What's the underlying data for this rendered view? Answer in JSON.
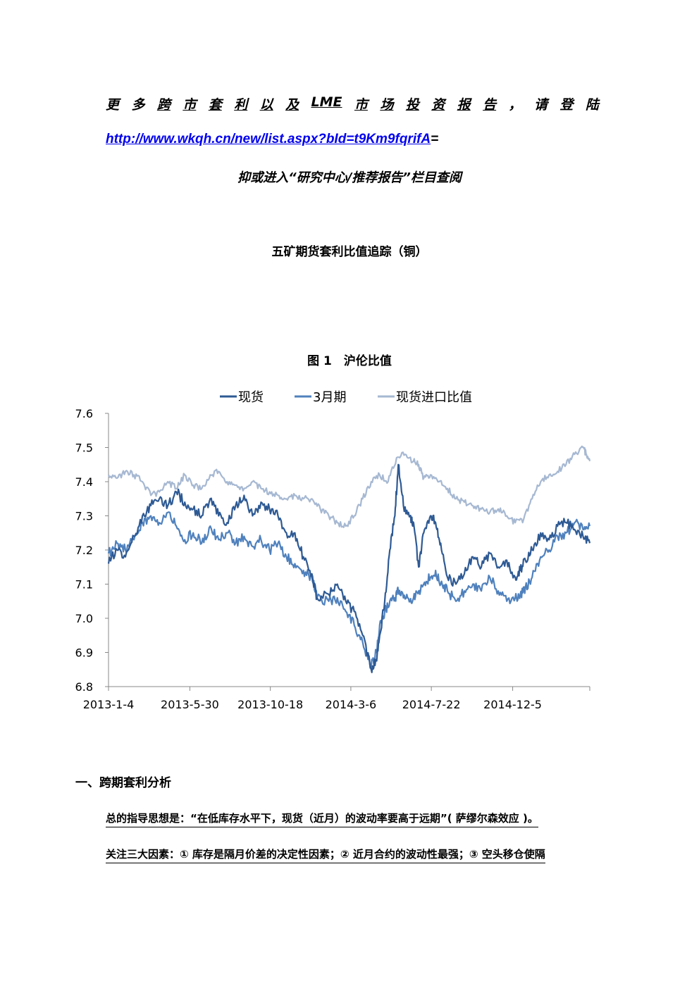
{
  "header": {
    "promo_chars": [
      "更",
      "多",
      "跨",
      "市",
      "套",
      "利",
      "以",
      "及",
      "LME",
      "市",
      "场",
      "投",
      "资",
      "报",
      "告",
      "，",
      "请",
      "登",
      "陆"
    ],
    "url_text": "http://www.wkqh.cn/new/list.aspx?bId=t9Km9fqrifA",
    "url_suffix": "=",
    "hint": "抑或进入“研究中心/推荐报告”栏目查阅"
  },
  "doc_title": "五矿期货套利比值追踪（铜）",
  "figure": {
    "title": "图 1　沪伦比值"
  },
  "chart_data": {
    "type": "line",
    "title": "",
    "legend_position": "top-center",
    "ylim": [
      6.8,
      7.6
    ],
    "yticks": [
      "7.6",
      "7.5",
      "7.4",
      "7.3",
      "7.2",
      "7.1",
      "7.0",
      "6.9",
      "6.8"
    ],
    "xticks": [
      "2013-1-4",
      "2013-5-30",
      "2013-10-18",
      "2014-3-6",
      "2014-7-22",
      "2014-12-5"
    ],
    "xrange_months": 28.4,
    "series": [
      {
        "name": "现货",
        "color": "#2e5a94",
        "values": [
          [
            0.0,
            7.16
          ],
          [
            0.5,
            7.2
          ],
          [
            1.0,
            7.18
          ],
          [
            1.5,
            7.24
          ],
          [
            2.0,
            7.3
          ],
          [
            2.5,
            7.33
          ],
          [
            3.0,
            7.35
          ],
          [
            3.5,
            7.33
          ],
          [
            4.0,
            7.37
          ],
          [
            4.5,
            7.34
          ],
          [
            5.0,
            7.32
          ],
          [
            5.5,
            7.3
          ],
          [
            6.0,
            7.35
          ],
          [
            6.5,
            7.3
          ],
          [
            7.0,
            7.28
          ],
          [
            7.5,
            7.33
          ],
          [
            8.0,
            7.36
          ],
          [
            8.5,
            7.3
          ],
          [
            9.0,
            7.34
          ],
          [
            9.5,
            7.32
          ],
          [
            10.0,
            7.3
          ],
          [
            10.5,
            7.25
          ],
          [
            11.0,
            7.25
          ],
          [
            11.5,
            7.18
          ],
          [
            12.0,
            7.13
          ],
          [
            12.3,
            7.06
          ],
          [
            13.0,
            7.07
          ],
          [
            13.5,
            7.1
          ],
          [
            14.0,
            7.05
          ],
          [
            14.5,
            7.02
          ],
          [
            15.0,
            6.95
          ],
          [
            15.5,
            6.85
          ],
          [
            15.8,
            6.88
          ],
          [
            16.0,
            6.95
          ],
          [
            16.3,
            7.05
          ],
          [
            16.6,
            7.2
          ],
          [
            16.9,
            7.3
          ],
          [
            17.1,
            7.45
          ],
          [
            17.4,
            7.33
          ],
          [
            17.8,
            7.3
          ],
          [
            18.0,
            7.28
          ],
          [
            18.3,
            7.15
          ],
          [
            18.6,
            7.25
          ],
          [
            19.0,
            7.3
          ],
          [
            19.3,
            7.28
          ],
          [
            19.6,
            7.22
          ],
          [
            20.0,
            7.12
          ],
          [
            20.5,
            7.1
          ],
          [
            21.0,
            7.13
          ],
          [
            21.5,
            7.18
          ],
          [
            22.0,
            7.15
          ],
          [
            22.5,
            7.19
          ],
          [
            23.0,
            7.15
          ],
          [
            23.5,
            7.17
          ],
          [
            24.0,
            7.12
          ],
          [
            24.3,
            7.14
          ],
          [
            24.6,
            7.17
          ],
          [
            25.0,
            7.2
          ],
          [
            25.5,
            7.25
          ],
          [
            26.0,
            7.23
          ],
          [
            26.5,
            7.27
          ],
          [
            27.0,
            7.28
          ],
          [
            27.5,
            7.26
          ],
          [
            28.0,
            7.24
          ],
          [
            28.4,
            7.22
          ]
        ]
      },
      {
        "name": "3月期",
        "color": "#4f81bd",
        "values": [
          [
            0.0,
            7.19
          ],
          [
            0.5,
            7.22
          ],
          [
            1.0,
            7.2
          ],
          [
            1.5,
            7.23
          ],
          [
            2.0,
            7.28
          ],
          [
            2.5,
            7.3
          ],
          [
            3.0,
            7.28
          ],
          [
            3.5,
            7.31
          ],
          [
            4.0,
            7.27
          ],
          [
            4.5,
            7.23
          ],
          [
            5.0,
            7.25
          ],
          [
            5.5,
            7.22
          ],
          [
            6.0,
            7.27
          ],
          [
            6.5,
            7.23
          ],
          [
            7.0,
            7.25
          ],
          [
            7.5,
            7.22
          ],
          [
            8.0,
            7.24
          ],
          [
            8.5,
            7.21
          ],
          [
            9.0,
            7.23
          ],
          [
            9.5,
            7.2
          ],
          [
            10.0,
            7.22
          ],
          [
            10.5,
            7.18
          ],
          [
            11.0,
            7.16
          ],
          [
            11.5,
            7.14
          ],
          [
            12.0,
            7.12
          ],
          [
            12.3,
            7.06
          ],
          [
            13.0,
            7.05
          ],
          [
            13.5,
            7.06
          ],
          [
            14.0,
            7.02
          ],
          [
            14.5,
            6.98
          ],
          [
            15.0,
            6.93
          ],
          [
            15.5,
            6.86
          ],
          [
            15.8,
            6.9
          ],
          [
            16.0,
            6.98
          ],
          [
            16.3,
            7.02
          ],
          [
            16.6,
            7.05
          ],
          [
            16.9,
            7.06
          ],
          [
            17.1,
            7.08
          ],
          [
            17.4,
            7.06
          ],
          [
            17.8,
            7.05
          ],
          [
            18.0,
            7.06
          ],
          [
            18.3,
            7.08
          ],
          [
            18.6,
            7.1
          ],
          [
            19.0,
            7.12
          ],
          [
            19.3,
            7.14
          ],
          [
            19.6,
            7.1
          ],
          [
            20.0,
            7.08
          ],
          [
            20.5,
            7.05
          ],
          [
            21.0,
            7.08
          ],
          [
            21.5,
            7.1
          ],
          [
            22.0,
            7.08
          ],
          [
            22.5,
            7.12
          ],
          [
            23.0,
            7.08
          ],
          [
            23.5,
            7.05
          ],
          [
            24.0,
            7.06
          ],
          [
            24.3,
            7.07
          ],
          [
            24.6,
            7.09
          ],
          [
            25.0,
            7.12
          ],
          [
            25.5,
            7.18
          ],
          [
            26.0,
            7.2
          ],
          [
            26.5,
            7.24
          ],
          [
            27.0,
            7.25
          ],
          [
            27.5,
            7.28
          ],
          [
            28.0,
            7.26
          ],
          [
            28.4,
            7.27
          ]
        ]
      },
      {
        "name": "现货进口比值",
        "color": "#a6b8d2",
        "values": [
          [
            0.0,
            7.42
          ],
          [
            0.5,
            7.41
          ],
          [
            1.0,
            7.43
          ],
          [
            1.5,
            7.42
          ],
          [
            2.0,
            7.4
          ],
          [
            2.5,
            7.36
          ],
          [
            3.0,
            7.37
          ],
          [
            3.5,
            7.4
          ],
          [
            4.0,
            7.38
          ],
          [
            4.5,
            7.42
          ],
          [
            5.0,
            7.39
          ],
          [
            5.5,
            7.38
          ],
          [
            6.0,
            7.42
          ],
          [
            6.5,
            7.43
          ],
          [
            7.0,
            7.4
          ],
          [
            7.5,
            7.39
          ],
          [
            8.0,
            7.38
          ],
          [
            8.5,
            7.4
          ],
          [
            9.0,
            7.38
          ],
          [
            9.5,
            7.37
          ],
          [
            10.0,
            7.36
          ],
          [
            10.5,
            7.35
          ],
          [
            11.0,
            7.36
          ],
          [
            11.5,
            7.35
          ],
          [
            12.0,
            7.35
          ],
          [
            12.5,
            7.32
          ],
          [
            13.0,
            7.3
          ],
          [
            13.5,
            7.28
          ],
          [
            14.0,
            7.27
          ],
          [
            14.5,
            7.3
          ],
          [
            15.0,
            7.35
          ],
          [
            15.5,
            7.4
          ],
          [
            16.0,
            7.42
          ],
          [
            16.5,
            7.4
          ],
          [
            17.0,
            7.47
          ],
          [
            17.5,
            7.48
          ],
          [
            18.0,
            7.46
          ],
          [
            18.3,
            7.45
          ],
          [
            18.6,
            7.41
          ],
          [
            19.0,
            7.42
          ],
          [
            19.5,
            7.4
          ],
          [
            20.0,
            7.38
          ],
          [
            20.5,
            7.35
          ],
          [
            21.0,
            7.34
          ],
          [
            21.5,
            7.33
          ],
          [
            22.0,
            7.32
          ],
          [
            22.5,
            7.31
          ],
          [
            23.0,
            7.32
          ],
          [
            23.5,
            7.3
          ],
          [
            24.0,
            7.28
          ],
          [
            24.5,
            7.29
          ],
          [
            25.0,
            7.35
          ],
          [
            25.5,
            7.4
          ],
          [
            26.0,
            7.42
          ],
          [
            26.5,
            7.43
          ],
          [
            27.0,
            7.45
          ],
          [
            27.5,
            7.48
          ],
          [
            28.0,
            7.5
          ],
          [
            28.2,
            7.48
          ],
          [
            28.4,
            7.46
          ]
        ]
      }
    ]
  },
  "section1": {
    "heading": "一、跨期套利分析",
    "para1": "总的指导思想是：“在低库存水平下，现货（近月）的波动率要高于远期”( 萨缪尔森效应 )。",
    "para2": "关注三大因素：①  库存是隔月价差的决定性因素；②  近月合约的波动性最强；③  空头移仓使隔"
  }
}
